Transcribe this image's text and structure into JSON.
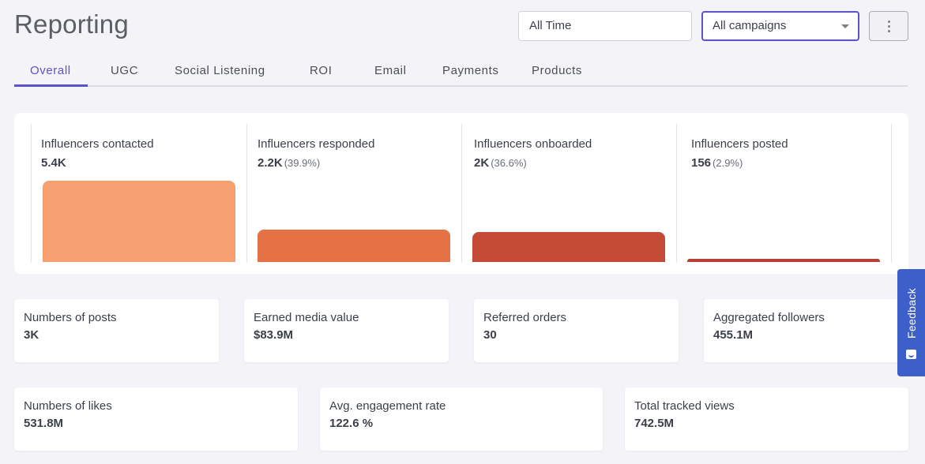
{
  "header": {
    "title": "Reporting",
    "date_range": "All Time",
    "campaign_select": "All campaigns"
  },
  "tabs": [
    "Overall",
    "UGC",
    "Social Listening",
    "ROI",
    "Email",
    "Payments",
    "Products"
  ],
  "funnel": [
    {
      "label": "Influencers contacted",
      "value": "5.4K",
      "pct": "",
      "count": 5400,
      "color": "#f6a071"
    },
    {
      "label": "Influencers responded",
      "value": "2.2K",
      "pct": "(39.9%)",
      "count": 2156,
      "color": "#e57245"
    },
    {
      "label": "Influencers onboarded",
      "value": "2K",
      "pct": "(36.6%)",
      "count": 1976,
      "color": "#c54a35"
    },
    {
      "label": "Influencers posted",
      "value": "156",
      "pct": "(2.9%)",
      "count": 156,
      "color": "#b93e36"
    }
  ],
  "stats_row1": [
    {
      "label": "Numbers of posts",
      "value": "3K"
    },
    {
      "label": "Earned media value",
      "value": "$83.9M"
    },
    {
      "label": "Referred orders",
      "value": "30"
    },
    {
      "label": "Aggregated followers",
      "value": "455.1M"
    }
  ],
  "stats_row2": [
    {
      "label": "Numbers of likes",
      "value": "531.8M"
    },
    {
      "label": "Avg. engagement rate",
      "value": "122.6 %"
    },
    {
      "label": "Total tracked views",
      "value": "742.5M"
    }
  ],
  "feedback": {
    "label": "Feedback"
  },
  "colors": {
    "accent": "#5b53c9",
    "feedback": "#3d5fc9"
  }
}
